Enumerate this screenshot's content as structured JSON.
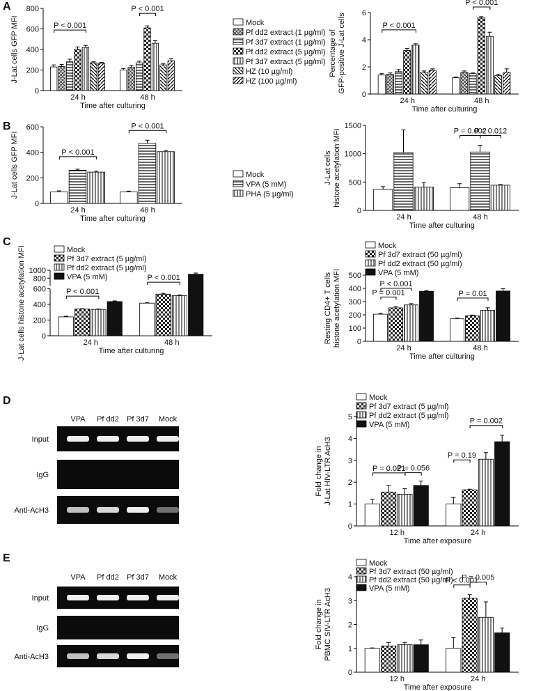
{
  "panel_labels": [
    "A",
    "B",
    "C",
    "D",
    "E"
  ],
  "gels": [
    {
      "lanes": [
        "VPA",
        "Pf dd2",
        "Pf 3d7",
        "Mock"
      ],
      "rows": [
        "Input",
        "IgG",
        "Anti-AcH3"
      ]
    },
    {
      "lanes": [
        "VPA",
        "Pf dd2",
        "Pf 3d7",
        "Mock"
      ],
      "rows": [
        "Input",
        "IgG",
        "Anti-AcH3"
      ]
    }
  ],
  "chart_data": [
    {
      "type": "bar",
      "ylabel": [
        "J-Lat cells GFP MFI"
      ],
      "xlabel": "Time after culturing",
      "categories": [
        "24 h",
        "48 h"
      ],
      "ylim": [
        0,
        800
      ],
      "yticks": [
        0,
        200,
        400,
        600,
        800
      ],
      "annotations": [
        "P < 0.001",
        "P < 0.001"
      ],
      "series": [
        {
          "name": "Mock",
          "pattern": "none",
          "values": [
            230,
            200
          ],
          "errors": [
            20,
            15
          ]
        },
        {
          "name": "Pf dd2 extract (1 µg/ml)",
          "pattern": "cross",
          "values": [
            235,
            225
          ],
          "errors": [
            20,
            20
          ]
        },
        {
          "name": "Pf 3d7 extract (1 µg/ml)",
          "pattern": "hlines",
          "values": [
            280,
            270
          ],
          "errors": [
            25,
            15
          ]
        },
        {
          "name": "Pf dd2 extract (5 µg/ml)",
          "pattern": "checker",
          "values": [
            400,
            610
          ],
          "errors": [
            25,
            20
          ]
        },
        {
          "name": "Pf 3d7 extract (5 µg/ml)",
          "pattern": "vlines",
          "values": [
            420,
            460
          ],
          "errors": [
            20,
            25
          ]
        },
        {
          "name": "HZ (10 µg/ml)",
          "pattern": "diag",
          "values": [
            270,
            250
          ],
          "errors": [
            10,
            10
          ]
        },
        {
          "name": "HZ (100 µg/ml)",
          "pattern": "diag2",
          "values": [
            265,
            290
          ],
          "errors": [
            10,
            20
          ]
        }
      ]
    },
    {
      "type": "bar",
      "ylabel": [
        "Percentage of",
        "GFP-positive J-Lat cells"
      ],
      "xlabel": "Time after culturing",
      "categories": [
        "24 h",
        "48 h"
      ],
      "ylim": [
        0,
        6
      ],
      "yticks": [
        0,
        2,
        4,
        6
      ],
      "annotations": [
        "P < 0.001",
        "P < 0.001"
      ],
      "series": [
        {
          "pattern": "none",
          "values": [
            1.4,
            1.2
          ],
          "errors": [
            0.1,
            0.05
          ]
        },
        {
          "pattern": "cross",
          "values": [
            1.45,
            1.6
          ],
          "errors": [
            0.1,
            0.1
          ]
        },
        {
          "pattern": "hlines",
          "values": [
            1.65,
            1.5
          ],
          "errors": [
            0.15,
            0.05
          ]
        },
        {
          "pattern": "checker",
          "values": [
            3.2,
            5.6
          ],
          "errors": [
            0.15,
            0.1
          ]
        },
        {
          "pattern": "vlines",
          "values": [
            3.6,
            4.25
          ],
          "errors": [
            0.1,
            0.3
          ]
        },
        {
          "pattern": "diag",
          "values": [
            1.6,
            1.35
          ],
          "errors": [
            0.1,
            0.1
          ]
        },
        {
          "pattern": "diag2",
          "values": [
            1.75,
            1.6
          ],
          "errors": [
            0.1,
            0.25
          ]
        }
      ]
    },
    {
      "type": "bar",
      "ylabel": [
        "J-Lat cells GFP MFI"
      ],
      "xlabel": "Time after culturing",
      "categories": [
        "24 h",
        "48 h"
      ],
      "ylim": [
        0,
        600
      ],
      "yticks": [
        0,
        200,
        400,
        600
      ],
      "annotations": [
        "P < 0.001",
        "P < 0.001"
      ],
      "series": [
        {
          "name": "Mock",
          "pattern": "none",
          "values": [
            90,
            90
          ],
          "errors": [
            8,
            6
          ]
        },
        {
          "name": "VPA (5 mM)",
          "pattern": "hlines",
          "values": [
            260,
            470
          ],
          "errors": [
            8,
            25
          ]
        },
        {
          "name": "PHA (5 µg/ml)",
          "pattern": "vlines",
          "values": [
            245,
            405
          ],
          "errors": [
            8,
            8
          ]
        }
      ]
    },
    {
      "type": "bar",
      "ylabel": [
        "J-Lat cells",
        "histone acetylation MFI"
      ],
      "xlabel": "Time after culturing",
      "categories": [
        "24 h",
        "48 h"
      ],
      "ylim": [
        0,
        1500
      ],
      "yticks": [
        0,
        500,
        1000,
        1500
      ],
      "annotations": [
        "P = 0.002",
        "P = 0.012"
      ],
      "series": [
        {
          "pattern": "none",
          "values": [
            370,
            400
          ],
          "errors": [
            50,
            70
          ]
        },
        {
          "pattern": "hlines",
          "values": [
            1020,
            1030
          ],
          "errors": [
            400,
            120
          ]
        },
        {
          "pattern": "vlines",
          "values": [
            410,
            445
          ],
          "errors": [
            80,
            10
          ]
        }
      ]
    },
    {
      "type": "bar",
      "ylabel": [
        "J-Lat cells histone acetylation MFI"
      ],
      "xlabel": "Time after culturing",
      "categories": [
        "24 h",
        "48 h"
      ],
      "ylim": [
        0,
        1000
      ],
      "yticks": [
        0,
        200,
        400,
        600,
        800,
        1000
      ],
      "axis_break": 600,
      "annotations": [
        "P < 0.001",
        "P < 0.001"
      ],
      "series": [
        {
          "name": "Mock",
          "pattern": "none",
          "values": [
            240,
            415
          ],
          "errors": [
            8,
            5
          ]
        },
        {
          "name": "Pf 3d7 extract (5 µg/ml)",
          "pattern": "checker",
          "values": [
            340,
            530
          ],
          "errors": [
            5,
            10
          ]
        },
        {
          "name": "Pf dd2 extract (5 µg/ml)",
          "pattern": "vlines",
          "values": [
            335,
            510
          ],
          "errors": [
            5,
            10
          ]
        },
        {
          "name": "VPA (5 mM)",
          "pattern": "black",
          "values": [
            435,
            900
          ],
          "errors": [
            8,
            30
          ]
        }
      ]
    },
    {
      "type": "bar",
      "ylabel": [
        "Resting CD4+ T cells",
        "histone acetylation MFI"
      ],
      "xlabel": "Time after culturing",
      "categories": [
        "24 h",
        "48 h"
      ],
      "ylim": [
        0,
        500
      ],
      "yticks": [
        0,
        100,
        200,
        300,
        400,
        500
      ],
      "annotations": [
        "P = 0.001",
        "P < 0.001",
        "P = 0.01"
      ],
      "series": [
        {
          "name": "Mock",
          "pattern": "none",
          "values": [
            205,
            170
          ],
          "errors": [
            7,
            6
          ]
        },
        {
          "name": "Pf 3d7 extract (50 µg/ml)",
          "pattern": "checker",
          "values": [
            253,
            193
          ],
          "errors": [
            8,
            5
          ]
        },
        {
          "name": "Pf dd2 extract (50 µg/ml)",
          "pattern": "vlines",
          "values": [
            275,
            235
          ],
          "errors": [
            10,
            18
          ]
        },
        {
          "name": "VPA (5 mM)",
          "pattern": "black",
          "values": [
            378,
            380
          ],
          "errors": [
            5,
            18
          ]
        }
      ]
    },
    {
      "type": "bar",
      "ylabel": [
        "Fold change in",
        "J-Lat HIV-LTR AcH3"
      ],
      "xlabel": "Time after exposure",
      "categories": [
        "12 h",
        "24 h"
      ],
      "ylim": [
        0,
        5
      ],
      "yticks": [
        0,
        1,
        2,
        3,
        4,
        5
      ],
      "annotations": [
        "P = 0.021",
        "P = 0.056",
        "P = 0.19",
        "P = 0.002"
      ],
      "series": [
        {
          "name": "Mock",
          "pattern": "none",
          "values": [
            1,
            1
          ],
          "errors": [
            0.2,
            0.3
          ]
        },
        {
          "name": "Pf 3d7 extract (5 µg/ml)",
          "pattern": "checker",
          "values": [
            1.55,
            1.65
          ],
          "errors": [
            0.3,
            0.03
          ]
        },
        {
          "name": "Pf dd2 extract (5 µg/ml)",
          "pattern": "vlines",
          "values": [
            1.45,
            3.05
          ],
          "errors": [
            0.25,
            0.3
          ]
        },
        {
          "name": "VPA (5 mM)",
          "pattern": "black",
          "values": [
            1.85,
            3.85
          ],
          "errors": [
            0.2,
            0.3
          ]
        }
      ]
    },
    {
      "type": "bar",
      "ylabel": [
        "Fold change in",
        "PBMC SIV-LTR AcH3"
      ],
      "xlabel": "Time after exposure",
      "categories": [
        "12 h",
        "24 h"
      ],
      "ylim": [
        0,
        4
      ],
      "yticks": [
        0,
        1,
        2,
        3,
        4
      ],
      "annotations": [
        "P < 0.001",
        "P = 0.005"
      ],
      "series": [
        {
          "name": "Mock",
          "pattern": "none",
          "values": [
            1,
            1
          ],
          "errors": [
            0.02,
            0.45
          ]
        },
        {
          "name": "Pf 3d7 extract (50 µg/ml)",
          "pattern": "checker",
          "values": [
            1.1,
            3.1
          ],
          "errors": [
            0.15,
            0.15
          ]
        },
        {
          "name": "Pf dd2 extract (50 µg/ml)",
          "pattern": "vlines",
          "values": [
            1.15,
            2.3
          ],
          "errors": [
            0.1,
            0.65
          ]
        },
        {
          "name": "VPA (5 mM)",
          "pattern": "black",
          "values": [
            1.15,
            1.65
          ],
          "errors": [
            0.2,
            0.2
          ]
        }
      ]
    }
  ]
}
